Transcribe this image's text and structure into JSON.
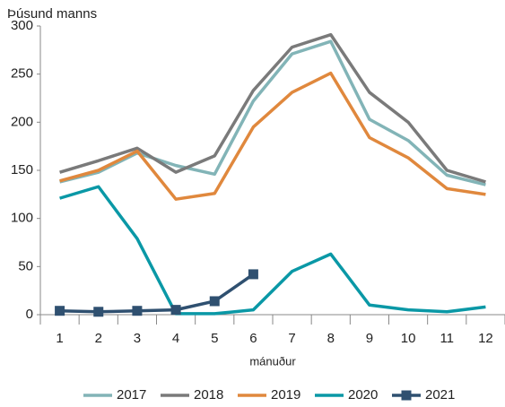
{
  "chart_data": {
    "type": "line",
    "y_label": "Þúsund manns",
    "x_label": "mánuður",
    "categories": [
      "1",
      "2",
      "3",
      "4",
      "5",
      "6",
      "7",
      "8",
      "9",
      "10",
      "11",
      "12"
    ],
    "series": [
      {
        "name": "2017",
        "color": "#82b4b7",
        "values": [
          138,
          148,
          168,
          155,
          146,
          222,
          271,
          284,
          203,
          181,
          145,
          135
        ]
      },
      {
        "name": "2018",
        "color": "#7a7a7a",
        "values": [
          148,
          160,
          173,
          148,
          165,
          233,
          278,
          291,
          231,
          200,
          150,
          138
        ]
      },
      {
        "name": "2019",
        "color": "#e0883d",
        "values": [
          139,
          150,
          170,
          120,
          126,
          195,
          231,
          251,
          184,
          163,
          131,
          125
        ]
      },
      {
        "name": "2020",
        "color": "#0a98a6",
        "values": [
          121,
          133,
          79,
          1,
          1,
          5,
          45,
          63,
          10,
          5,
          3,
          8
        ]
      },
      {
        "name": "2021",
        "color": "#2f5070",
        "marker": "square",
        "values": [
          4,
          3,
          4,
          5,
          14,
          42,
          null,
          null,
          null,
          null,
          null,
          null
        ]
      }
    ],
    "ylim": [
      0,
      300
    ],
    "yticks": [
      0,
      50,
      100,
      150,
      200,
      250,
      300
    ],
    "grid": false,
    "legend": "bottom"
  }
}
